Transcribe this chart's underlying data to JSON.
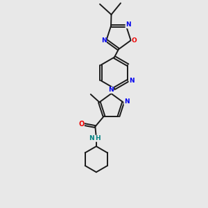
{
  "background_color": "#e8e8e8",
  "bond_color": "#1a1a1a",
  "N_color": "#0000ee",
  "O_color": "#ee0000",
  "NH_color": "#008080",
  "line_width": 1.4,
  "figsize": [
    3.0,
    3.0
  ],
  "dpi": 100,
  "xlim": [
    0,
    10
  ],
  "ylim": [
    0,
    10
  ]
}
